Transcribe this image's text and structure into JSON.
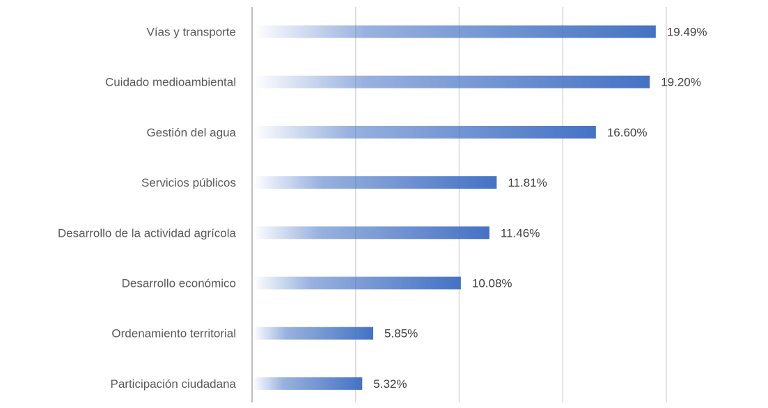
{
  "chart_data": {
    "type": "bar",
    "orientation": "horizontal",
    "categories": [
      "Vías y transporte",
      "Cuidado medioambiental",
      "Gestión del agua",
      "Servicios públicos",
      "Desarrollo de la actividad agrícola",
      "Desarrollo económico",
      "Ordenamiento territorial",
      "Participación ciudadana"
    ],
    "values": [
      19.49,
      19.2,
      16.6,
      11.81,
      11.46,
      10.08,
      5.85,
      5.32
    ],
    "value_labels": [
      "19.49%",
      "19.20%",
      "16.60%",
      "11.81%",
      "11.46%",
      "10.08%",
      "5.85%",
      "5.32%"
    ],
    "xlim": [
      0,
      25
    ],
    "x_gridlines": [
      0,
      5,
      10,
      15,
      20
    ],
    "grid": true,
    "legend": "none",
    "bar_color": "#4472c4",
    "bar_fill": "gradient-fade-left"
  }
}
